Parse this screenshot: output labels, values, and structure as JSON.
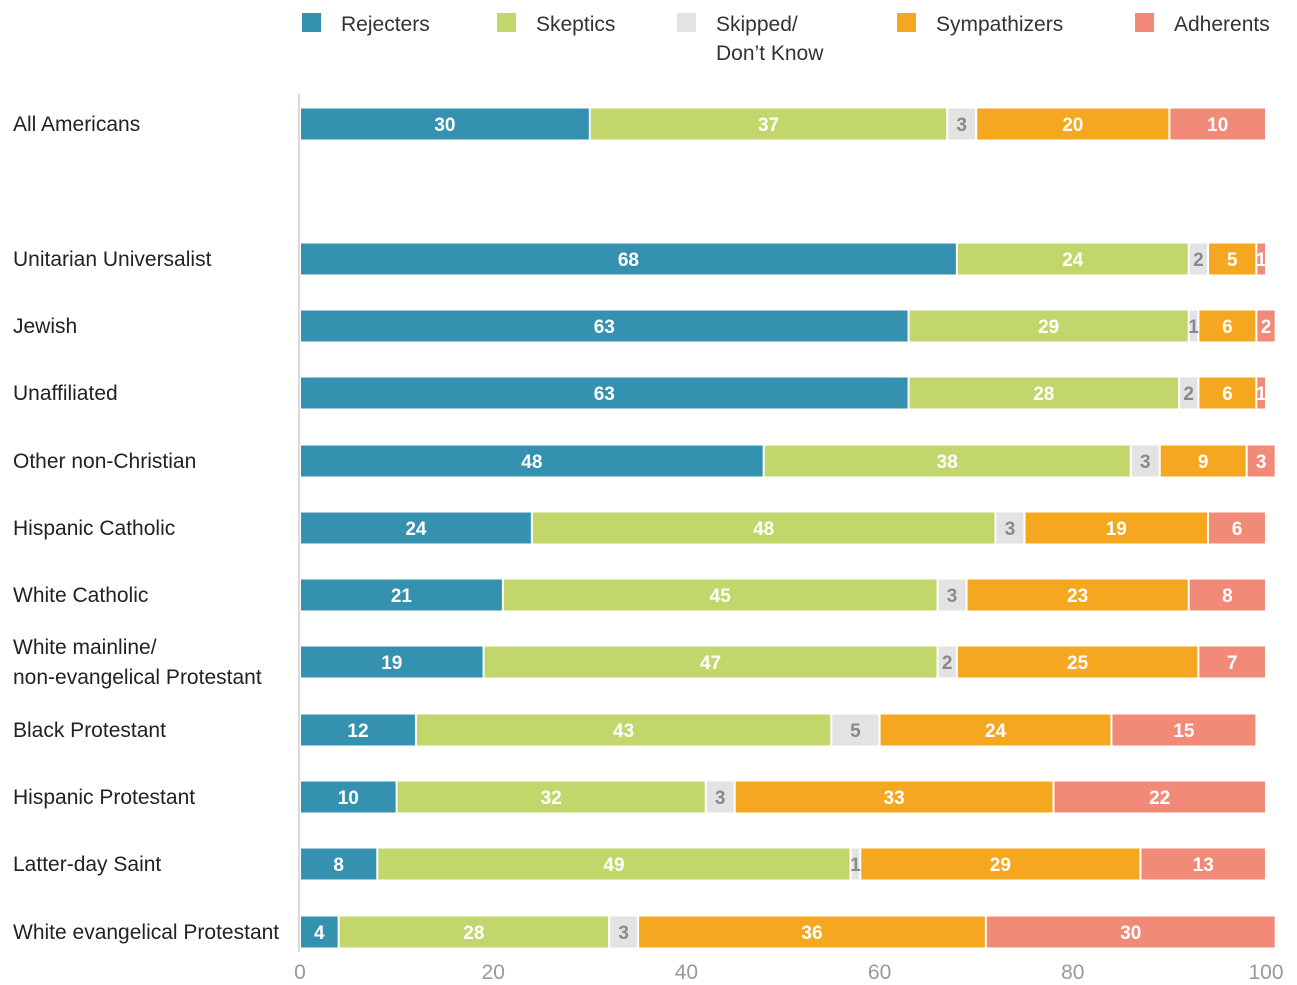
{
  "chart_data": {
    "type": "bar",
    "orientation": "horizontal",
    "stacked": true,
    "categories": [
      "All Americans",
      "Unitarian Universalist",
      "Jewish",
      "Unaffiliated",
      "Other non-Christian",
      "Hispanic Catholic",
      "White Catholic",
      "White mainline/\nnon-evangelical Protestant",
      "Black Protestant",
      "Hispanic Protestant",
      "Latter-day Saint",
      "White evangelical Protestant"
    ],
    "series": [
      {
        "name": "Rejecters",
        "color": "#3591b0",
        "label_color": "#ffffff",
        "values": [
          30,
          68,
          63,
          63,
          48,
          24,
          21,
          19,
          12,
          10,
          8,
          4
        ]
      },
      {
        "name": "Skeptics",
        "color": "#c2d76b",
        "label_color": "#ffffff",
        "values": [
          37,
          24,
          29,
          28,
          38,
          48,
          45,
          47,
          43,
          32,
          49,
          28
        ]
      },
      {
        "name": "Skipped/\nDon’t Know",
        "color": "#e3e3e3",
        "label_color": "#8a8a8a",
        "values": [
          3,
          2,
          1,
          2,
          3,
          3,
          3,
          2,
          5,
          3,
          1,
          3
        ]
      },
      {
        "name": "Sympathizers",
        "color": "#f5a71f",
        "label_color": "#ffffff",
        "values": [
          20,
          5,
          6,
          6,
          9,
          19,
          23,
          25,
          24,
          33,
          29,
          36
        ]
      },
      {
        "name": "Adherents",
        "color": "#f28a78",
        "label_color": "#ffffff",
        "values": [
          10,
          1,
          2,
          1,
          3,
          6,
          8,
          7,
          15,
          22,
          13,
          30
        ]
      }
    ],
    "xlim": [
      0,
      100
    ],
    "xticks": [
      0,
      20,
      40,
      60,
      80,
      100
    ],
    "legend": "top",
    "grid": false
  }
}
